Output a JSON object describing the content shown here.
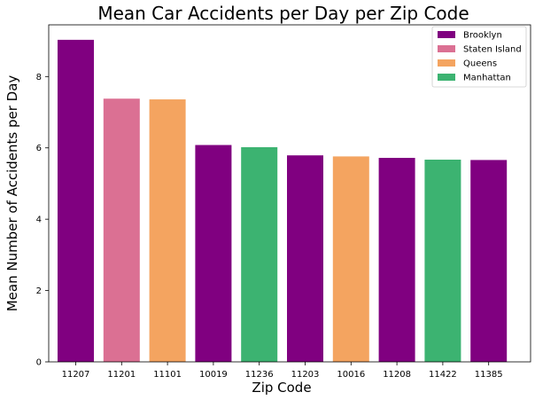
{
  "chart_data": {
    "type": "bar",
    "title": "Mean Car Accidents per Day per Zip Code",
    "xlabel": "Zip Code",
    "ylabel": "Mean Number of Accidents per Day",
    "ylim": [
      0,
      9.45
    ],
    "yticks": [
      0,
      2,
      4,
      6,
      8
    ],
    "grid": false,
    "legend_position": "top-right",
    "categories": [
      "11207",
      "11201",
      "11101",
      "10019",
      "11236",
      "11203",
      "10016",
      "11208",
      "11422",
      "11385"
    ],
    "values": [
      9.03,
      7.38,
      7.36,
      6.08,
      6.02,
      5.79,
      5.76,
      5.72,
      5.67,
      5.66
    ],
    "bar_groups": [
      "Brooklyn",
      "Staten Island",
      "Queens",
      "Brooklyn",
      "Manhattan",
      "Brooklyn",
      "Queens",
      "Brooklyn",
      "Manhattan",
      "Brooklyn"
    ],
    "legend": [
      {
        "name": "Brooklyn",
        "color": "#800080"
      },
      {
        "name": "Staten Island",
        "color": "#db7093"
      },
      {
        "name": "Queens",
        "color": "#f4a460"
      },
      {
        "name": "Manhattan",
        "color": "#3cb371"
      }
    ]
  }
}
